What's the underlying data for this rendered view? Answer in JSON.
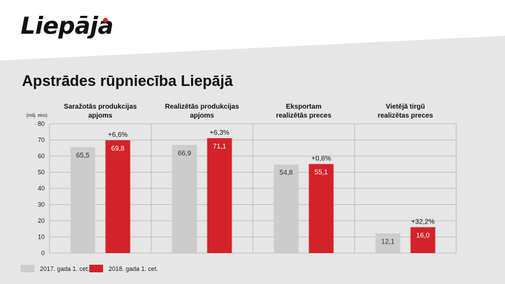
{
  "brand": {
    "logo_text": "Liepāja",
    "accent_color": "#d2232a"
  },
  "title": "Apstrādes rūpniecība Liepājā",
  "chart_data": {
    "type": "bar",
    "title": "Apstrādes rūpniecība Liepājā",
    "ylabel": "(milj. eiro)",
    "ylim": [
      0,
      80
    ],
    "yticks": [
      0,
      10,
      20,
      30,
      40,
      50,
      60,
      70,
      80
    ],
    "grid": true,
    "legend_position": "bottom-left",
    "categories": [
      "Saražotās produkcijas apjoms",
      "Realizētās produkcijas apjoms",
      "Eksportam realizētās preces",
      "Vietējā tirgū realizētas preces"
    ],
    "category_lines": [
      [
        "Saražotās produkcijas",
        "apjoms"
      ],
      [
        "Realizētās produkcijas",
        "apjoms"
      ],
      [
        "Eksportam",
        "realizētās preces"
      ],
      [
        "Vietējā tirgū",
        "realizētas preces"
      ]
    ],
    "series": [
      {
        "name": "2017. gada 1. cet.",
        "color": "#cccccc",
        "values": [
          65.5,
          66.9,
          54.8,
          12.1
        ],
        "labels": [
          "65,5",
          "66,9",
          "54,8",
          "12,1"
        ]
      },
      {
        "name": "2018. gada 1. cet.",
        "color": "#d2232a",
        "values": [
          69.8,
          71.1,
          55.1,
          16.0
        ],
        "labels": [
          "69,8",
          "71,1",
          "55,1",
          "16,0"
        ]
      }
    ],
    "changes": [
      "+6,6%",
      "+6,3%",
      "+0,6%",
      "+32,2%"
    ]
  }
}
